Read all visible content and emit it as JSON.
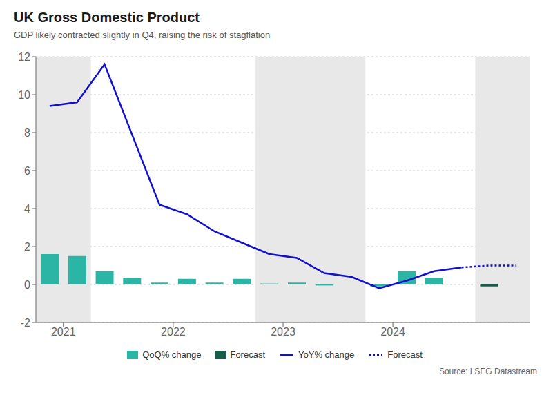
{
  "chart_data": {
    "type": "bar",
    "title": "UK Gross Domestic Product",
    "subtitle": "GDP likely contracted slightly in Q4, raising the risk of stagflation",
    "source": "Source: LSEG Datastream",
    "xlim": [
      2020.75,
      2025.25
    ],
    "xticks": [
      2021,
      2022,
      2023,
      2024
    ],
    "ylim": [
      -2,
      12
    ],
    "yticks": [
      -2,
      0,
      2,
      4,
      6,
      8,
      10,
      12
    ],
    "grid": true,
    "legend": "bottom",
    "shaded_regions": [
      [
        2020.75,
        2021.25
      ],
      [
        2022.75,
        2023.75
      ],
      [
        2024.75,
        2025.25
      ]
    ],
    "shaded_color": "#e8e8e8",
    "series": [
      {
        "name": "QoQ% change",
        "type": "bar",
        "color": "#2ab5a5",
        "x": [
          2020.875,
          2021.125,
          2021.375,
          2021.625,
          2021.875,
          2022.125,
          2022.375,
          2022.625,
          2022.875,
          2023.125,
          2023.375,
          2023.625,
          2023.875,
          2024.125,
          2024.375,
          2024.625
        ],
        "values": [
          1.6,
          1.5,
          0.7,
          0.35,
          0.1,
          0.3,
          0.1,
          0.3,
          0.05,
          0.1,
          -0.05,
          0.0,
          -0.1,
          0.7,
          0.35,
          0.0
        ]
      },
      {
        "name": "Forecast",
        "type": "bar",
        "color": "#1a5c4a",
        "x": [
          2024.875
        ],
        "values": [
          -0.1
        ]
      },
      {
        "name": "YoY% change",
        "type": "line",
        "color": "#1111cc",
        "line_style": "solid",
        "x": [
          2020.875,
          2021.125,
          2021.375,
          2021.875,
          2022.125,
          2022.375,
          2022.625,
          2022.875,
          2023.125,
          2023.375,
          2023.625,
          2023.875,
          2024.125,
          2024.375,
          2024.625
        ],
        "values": [
          9.4,
          9.6,
          11.6,
          4.2,
          3.7,
          2.8,
          2.2,
          1.6,
          1.4,
          0.6,
          0.4,
          -0.2,
          0.2,
          0.7,
          0.9
        ]
      },
      {
        "name": "Forecast",
        "type": "line",
        "color": "#1111cc",
        "line_style": "dotted",
        "x": [
          2024.625,
          2024.875,
          2025.125
        ],
        "values": [
          0.9,
          1.0,
          1.0
        ]
      }
    ]
  }
}
